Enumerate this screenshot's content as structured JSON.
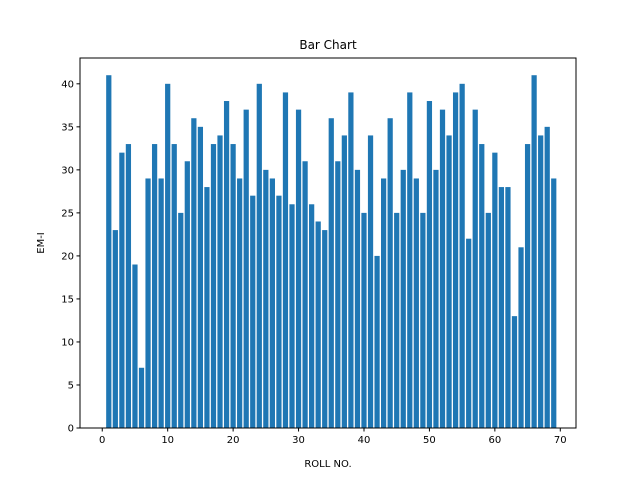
{
  "chart_data": {
    "type": "bar",
    "title": "Bar Chart",
    "xlabel": "ROLL NO.",
    "ylabel": "EM-I",
    "xlim": [
      -3.4,
      72.4
    ],
    "ylim": [
      0,
      43
    ],
    "grid": false,
    "legend": "none",
    "bar_color": "#1f77b4",
    "x_ticks": [
      0,
      10,
      20,
      30,
      40,
      50,
      60,
      70
    ],
    "y_ticks": [
      0,
      5,
      10,
      15,
      20,
      25,
      30,
      35,
      40
    ],
    "x": [
      1,
      2,
      3,
      4,
      5,
      6,
      7,
      8,
      9,
      10,
      11,
      12,
      13,
      14,
      15,
      16,
      17,
      18,
      19,
      20,
      21,
      22,
      23,
      24,
      25,
      26,
      27,
      28,
      29,
      30,
      31,
      32,
      33,
      34,
      35,
      36,
      37,
      38,
      39,
      40,
      41,
      42,
      43,
      44,
      45,
      46,
      47,
      48,
      49,
      50,
      51,
      52,
      53,
      54,
      55,
      56,
      57,
      58,
      59,
      60,
      61,
      62,
      63,
      64,
      65,
      66,
      67,
      68,
      69
    ],
    "values": [
      41,
      23,
      32,
      33,
      19,
      7,
      29,
      33,
      29,
      40,
      33,
      25,
      31,
      36,
      35,
      28,
      33,
      34,
      38,
      33,
      29,
      37,
      27,
      40,
      30,
      29,
      27,
      39,
      26,
      37,
      31,
      26,
      24,
      23,
      36,
      31,
      34,
      39,
      30,
      25,
      34,
      20,
      29,
      36,
      25,
      30,
      39,
      29,
      25,
      38,
      30,
      37,
      34,
      39,
      40,
      22,
      37,
      33,
      25,
      32,
      28,
      28,
      13,
      21,
      33,
      41,
      34,
      35,
      29
    ]
  }
}
